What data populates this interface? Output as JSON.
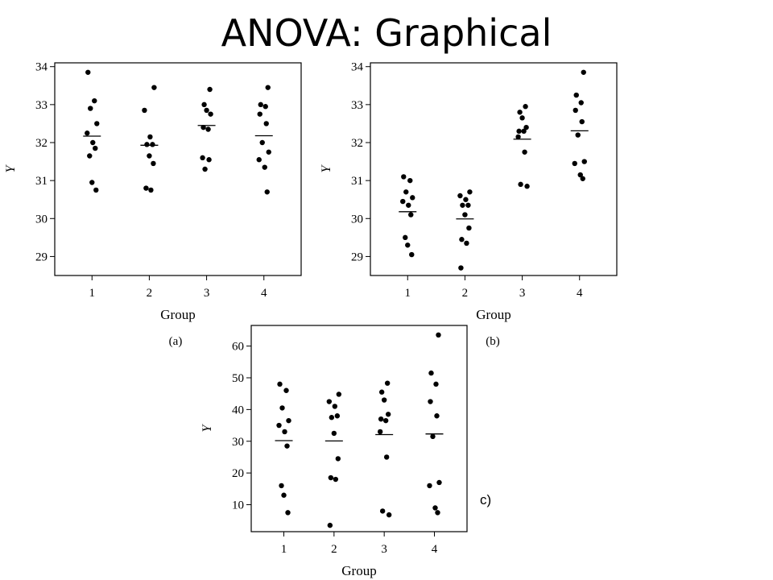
{
  "slide": {
    "title": "ANOVA: Graphical"
  },
  "chart_data": [
    {
      "type": "scatter",
      "caption": "(a)",
      "xlabel": "Group",
      "ylabel": "Y",
      "categories": [
        "1",
        "2",
        "3",
        "4"
      ],
      "xlim": [
        0.35,
        4.65
      ],
      "ylim": [
        28.5,
        34.1
      ],
      "yticks": [
        "29",
        "30",
        "31",
        "32",
        "33",
        "34"
      ],
      "group_means": [
        32.17,
        31.93,
        32.45,
        32.18
      ],
      "groups": [
        [
          33.85,
          33.1,
          32.9,
          32.5,
          32.25,
          32.0,
          31.85,
          31.65,
          30.95,
          30.75
        ],
        [
          33.45,
          32.85,
          32.15,
          31.95,
          31.95,
          31.65,
          31.45,
          30.8,
          30.75
        ],
        [
          33.4,
          33.0,
          32.85,
          32.75,
          32.4,
          32.35,
          31.6,
          31.55,
          31.3
        ],
        [
          33.45,
          33.0,
          32.95,
          32.75,
          32.5,
          32.0,
          31.75,
          31.55,
          31.35,
          30.7
        ]
      ]
    },
    {
      "type": "scatter",
      "caption": "(b)",
      "xlabel": "Group",
      "ylabel": "Y",
      "categories": [
        "1",
        "2",
        "3",
        "4"
      ],
      "xlim": [
        0.35,
        4.65
      ],
      "ylim": [
        28.5,
        34.1
      ],
      "yticks": [
        "29",
        "30",
        "31",
        "32",
        "33",
        "34"
      ],
      "group_means": [
        30.18,
        29.99,
        32.09,
        32.31
      ],
      "groups": [
        [
          31.1,
          31.0,
          30.7,
          30.55,
          30.45,
          30.35,
          30.1,
          29.5,
          29.3,
          29.05
        ],
        [
          30.7,
          30.6,
          30.5,
          30.35,
          30.35,
          30.1,
          29.75,
          29.45,
          29.35,
          28.7
        ],
        [
          32.95,
          32.8,
          32.65,
          32.4,
          32.3,
          32.3,
          32.15,
          31.75,
          30.9,
          30.85
        ],
        [
          33.85,
          33.25,
          33.05,
          32.85,
          32.55,
          32.2,
          31.5,
          31.45,
          31.15,
          31.05
        ]
      ]
    },
    {
      "type": "scatter",
      "caption": "c)",
      "xlabel": "Group",
      "ylabel": "Y",
      "categories": [
        "1",
        "2",
        "3",
        "4"
      ],
      "xlim": [
        0.35,
        4.65
      ],
      "ylim": [
        1.5,
        66.5
      ],
      "yticks": [
        "10",
        "20",
        "30",
        "40",
        "50",
        "60"
      ],
      "group_means": [
        30.2,
        30.1,
        32.1,
        32.3
      ],
      "groups": [
        [
          48.0,
          46.0,
          40.5,
          36.5,
          35.0,
          33.0,
          28.5,
          16.0,
          13.0,
          7.5
        ],
        [
          44.8,
          42.5,
          41.0,
          38.0,
          37.5,
          32.5,
          24.5,
          18.5,
          18.0,
          3.5
        ],
        [
          48.3,
          45.5,
          43.0,
          38.5,
          37.0,
          36.5,
          33.0,
          25.0,
          8.0,
          6.8
        ],
        [
          63.5,
          51.5,
          48.0,
          42.5,
          38.0,
          31.5,
          17.0,
          16.0,
          9.0,
          7.5
        ]
      ]
    }
  ]
}
